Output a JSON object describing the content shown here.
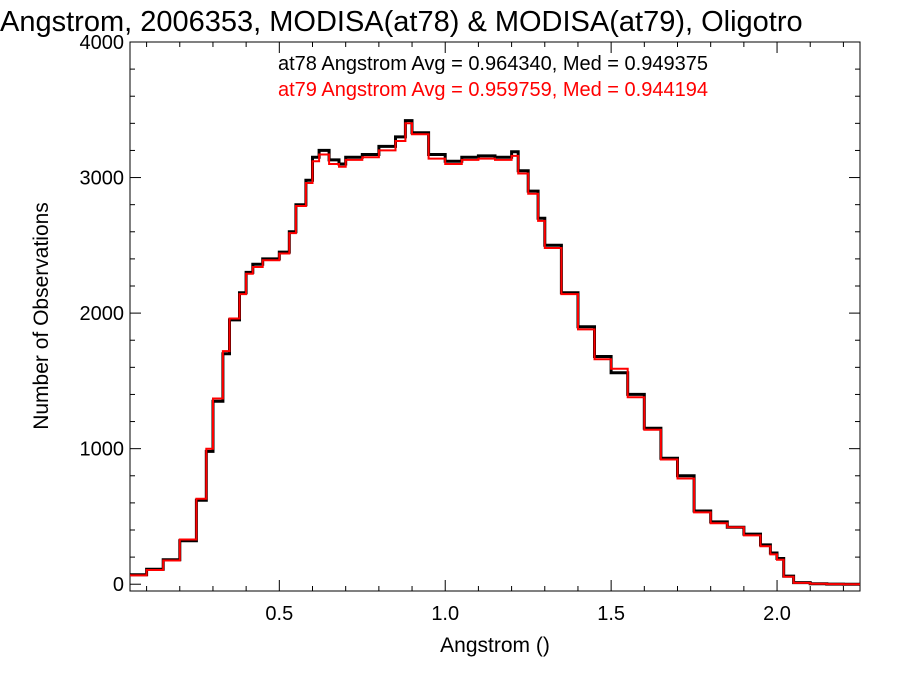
{
  "chart_data": {
    "type": "line",
    "step": true,
    "title": "Angstrom, 2006353, MODISA(at78) & MODISA(at79), Oligotro",
    "xlabel": "Angstrom ()",
    "ylabel": "Number of Observations",
    "xlim": [
      0.05,
      2.25
    ],
    "ylim": [
      -50,
      4000
    ],
    "x_ticks": [
      0.5,
      1.0,
      1.5,
      2.0
    ],
    "x_tick_labels": [
      "0.5",
      "1.0",
      "1.5",
      "2.0"
    ],
    "y_ticks": [
      0,
      1000,
      2000,
      3000,
      4000
    ],
    "y_tick_labels": [
      "0",
      "1000",
      "2000",
      "3000",
      "4000"
    ],
    "grid": false,
    "legend": [
      {
        "text": "at78 Angstrom Avg = 0.964340, Med = 0.949375",
        "color": "#000000"
      },
      {
        "text": "at79 Angstrom Avg = 0.959759, Med = 0.944194",
        "color": "#ff0000"
      }
    ],
    "series": [
      {
        "color": "#000000",
        "x": [
          0.05,
          0.1,
          0.15,
          0.2,
          0.25,
          0.28,
          0.3,
          0.33,
          0.35,
          0.38,
          0.4,
          0.42,
          0.45,
          0.5,
          0.53,
          0.55,
          0.58,
          0.6,
          0.62,
          0.65,
          0.68,
          0.7,
          0.75,
          0.8,
          0.85,
          0.88,
          0.9,
          0.95,
          1.0,
          1.05,
          1.1,
          1.15,
          1.2,
          1.22,
          1.25,
          1.28,
          1.3,
          1.35,
          1.4,
          1.45,
          1.5,
          1.55,
          1.6,
          1.65,
          1.7,
          1.75,
          1.8,
          1.85,
          1.9,
          1.95,
          1.98,
          2.0,
          2.02,
          2.05,
          2.1,
          2.15,
          2.2,
          2.25
        ],
        "y": [
          70,
          110,
          180,
          320,
          620,
          980,
          1350,
          1700,
          1950,
          2150,
          2300,
          2360,
          2400,
          2450,
          2600,
          2800,
          2980,
          3150,
          3200,
          3130,
          3100,
          3150,
          3170,
          3230,
          3300,
          3420,
          3330,
          3170,
          3120,
          3150,
          3160,
          3150,
          3190,
          3050,
          2900,
          2700,
          2500,
          2150,
          1900,
          1680,
          1560,
          1400,
          1150,
          930,
          800,
          540,
          460,
          420,
          370,
          290,
          230,
          190,
          60,
          12,
          3,
          1,
          0,
          0
        ]
      },
      {
        "color": "#ff0000",
        "x": [
          0.05,
          0.1,
          0.15,
          0.2,
          0.25,
          0.28,
          0.3,
          0.33,
          0.35,
          0.38,
          0.4,
          0.42,
          0.45,
          0.5,
          0.53,
          0.55,
          0.58,
          0.6,
          0.62,
          0.65,
          0.68,
          0.7,
          0.75,
          0.8,
          0.85,
          0.88,
          0.9,
          0.95,
          1.0,
          1.05,
          1.1,
          1.15,
          1.2,
          1.22,
          1.25,
          1.28,
          1.3,
          1.35,
          1.4,
          1.45,
          1.5,
          1.55,
          1.6,
          1.65,
          1.7,
          1.75,
          1.8,
          1.85,
          1.9,
          1.95,
          1.98,
          2.0,
          2.02,
          2.05,
          2.1,
          2.15,
          2.2,
          2.25
        ],
        "y": [
          65,
          105,
          175,
          330,
          630,
          1000,
          1370,
          1720,
          1960,
          2140,
          2290,
          2340,
          2390,
          2440,
          2590,
          2790,
          2960,
          3120,
          3170,
          3100,
          3080,
          3130,
          3150,
          3200,
          3270,
          3400,
          3320,
          3140,
          3100,
          3130,
          3140,
          3130,
          3160,
          3030,
          2880,
          2680,
          2480,
          2140,
          1880,
          1660,
          1590,
          1380,
          1140,
          920,
          780,
          530,
          450,
          420,
          360,
          280,
          220,
          180,
          55,
          10,
          3,
          1,
          0,
          0
        ]
      }
    ]
  }
}
